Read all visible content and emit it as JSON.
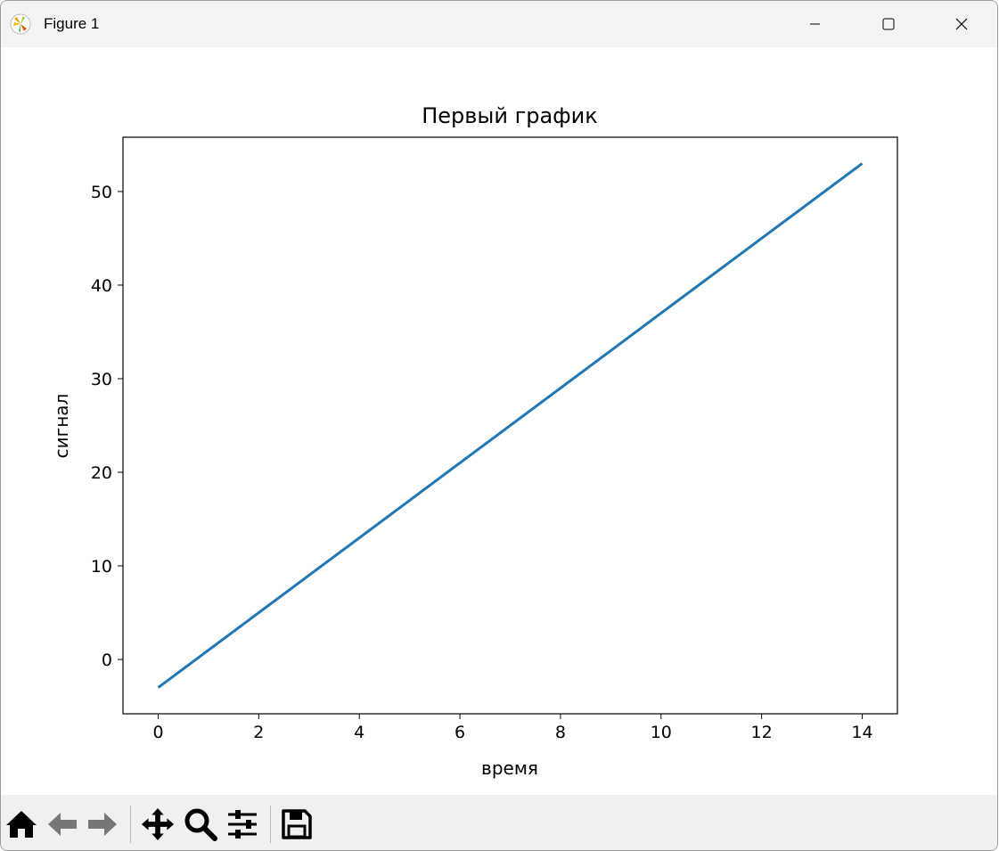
{
  "window": {
    "title": "Figure 1",
    "app_icon": "matplotlib-logo-icon"
  },
  "window_controls": [
    "minimize-icon",
    "maximize-icon",
    "close-icon"
  ],
  "toolbar": {
    "buttons": [
      "home-icon",
      "back-arrow-icon",
      "forward-arrow-icon",
      "pan-move-icon",
      "zoom-magnifier-icon",
      "configure-subplots-icon",
      "save-disk-icon"
    ]
  },
  "chart_data": {
    "type": "line",
    "title": "Первый график",
    "xlabel": "время",
    "ylabel": "сигнал",
    "xlim": [
      -0.7,
      14.7
    ],
    "ylim": [
      -5.8,
      55.8
    ],
    "xticks": [
      0,
      2,
      4,
      6,
      8,
      10,
      12,
      14
    ],
    "yticks": [
      0,
      10,
      20,
      30,
      40,
      50
    ],
    "grid": false,
    "series": [
      {
        "color": "#1f77b4",
        "x": [
          0,
          14
        ],
        "y": [
          -3,
          53
        ]
      }
    ]
  }
}
